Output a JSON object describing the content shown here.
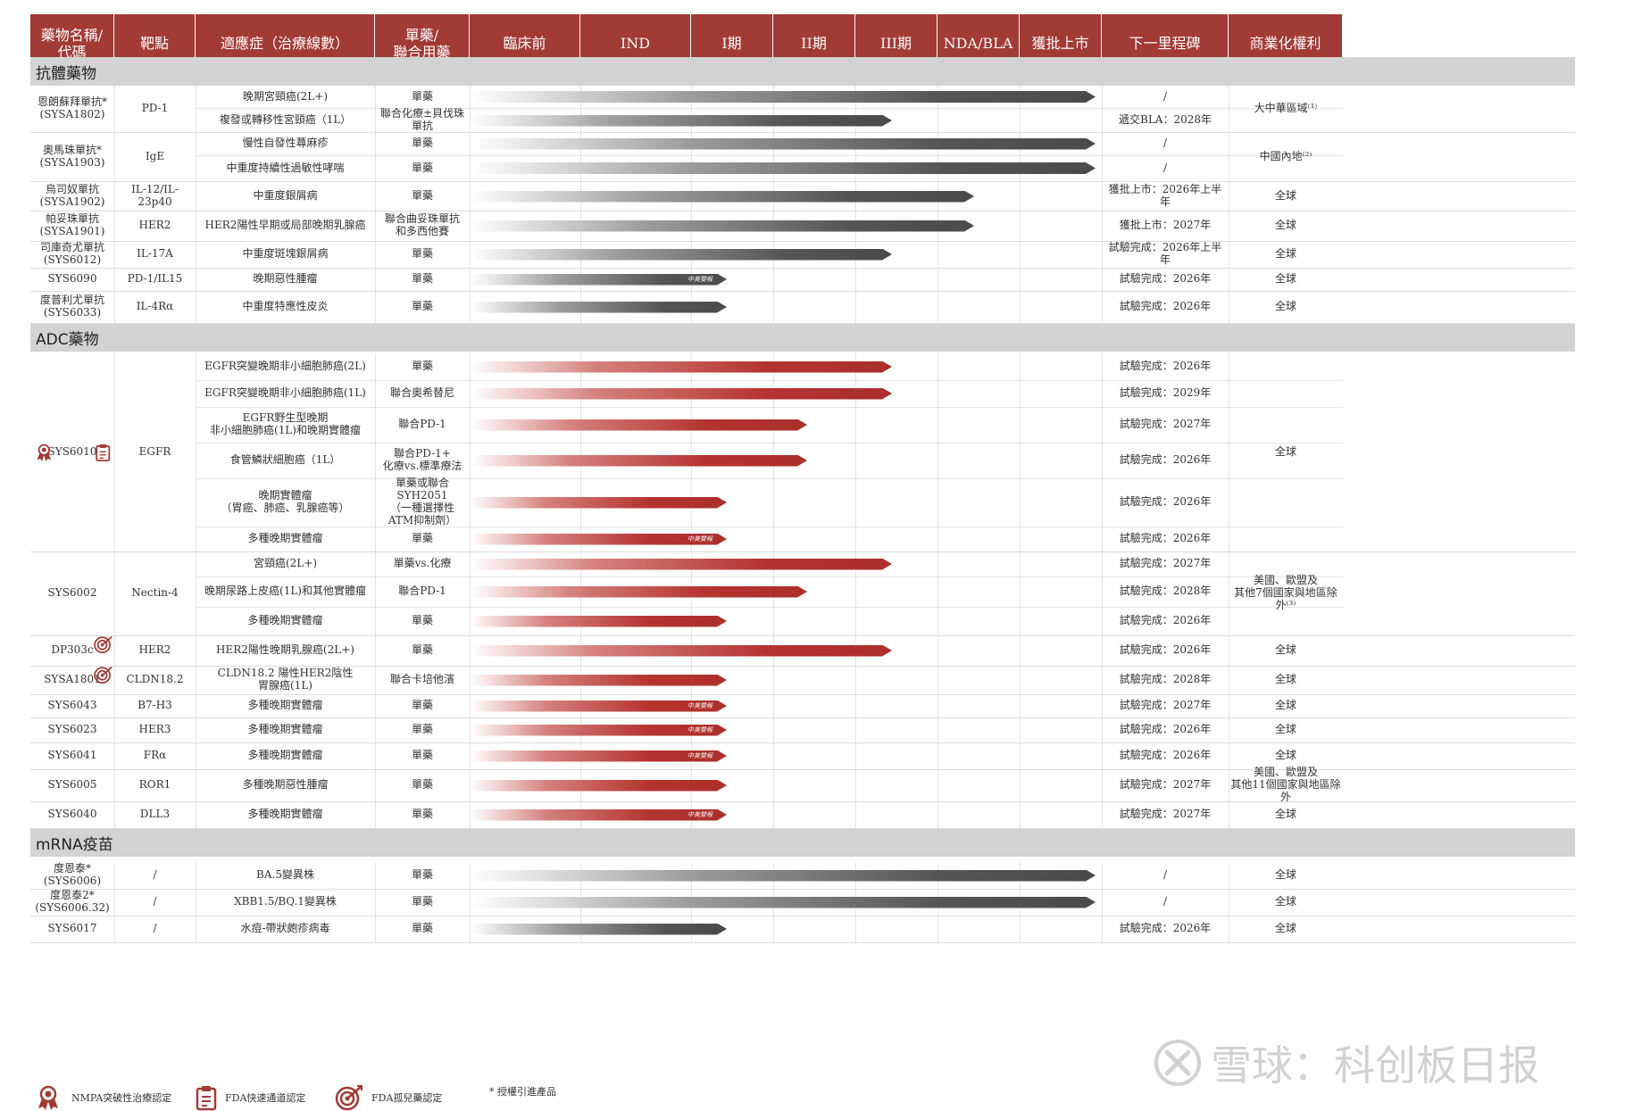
{
  "headers": [
    {
      "label": "藥物名稱/\n代碼"
    },
    {
      "label": "靶點"
    },
    {
      "label": "適應症（治療線數）"
    },
    {
      "label": "單藥/\n聯合用藥"
    },
    {
      "label": "臨床前"
    },
    {
      "label": "IND"
    },
    {
      "label": "I期"
    },
    {
      "label": "II期"
    },
    {
      "label": "III期"
    },
    {
      "label": "NDA/BLA"
    },
    {
      "label": "獲批上市"
    },
    {
      "label": "下一里程碑"
    },
    {
      "label": "商業化權利"
    }
  ],
  "sections": [
    {
      "title": "抗體藥物"
    },
    {
      "title": "ADC藥物"
    },
    {
      "title": "mRNA疫苗"
    }
  ],
  "groups": [
    {
      "drug": "恩朗蘇拜單抗*\n(SYSA1802)",
      "target": "PD-1",
      "rights": "大中華區域⁽¹⁾",
      "icons": []
    },
    {
      "drug": "奧馬珠單抗*\n(SYSA1903)",
      "target": "IgE",
      "rights": "中國內地⁽²⁾",
      "icons": []
    },
    {
      "drug": "烏司奴單抗\n(SYSA1902)",
      "target": "IL-12/IL-23p40",
      "rights": "全球",
      "icons": []
    },
    {
      "drug": "帕妥珠單抗\n(SYSA1901)",
      "target": "HER2",
      "rights": "全球",
      "icons": []
    },
    {
      "drug": "司庫奇尤單抗\n(SYS6012)",
      "target": "IL-17A",
      "rights": "全球",
      "icons": []
    },
    {
      "drug": "SYS6090",
      "target": "PD-1/IL15",
      "rights": "全球",
      "icons": []
    },
    {
      "drug": "度普利尤單抗\n(SYS6033)",
      "target": "IL-4Rα",
      "rights": "全球",
      "icons": []
    },
    {
      "drug": "SYS6010",
      "target": "EGFR",
      "rights": "全球",
      "icons": [
        "nmpa-breakthrough",
        "fda-fast-track"
      ]
    },
    {
      "drug": "SYS6002",
      "target": "Nectin-4",
      "rights": "美國、歐盟及\n其他7個國家與地區除外⁽³⁾",
      "icons": []
    },
    {
      "drug": "DP303c",
      "target": "HER2",
      "rights": "全球",
      "icons": [
        "fda-orphan"
      ]
    },
    {
      "drug": "SYSA1801",
      "target": "CLDN18.2",
      "rights": "全球",
      "icons": [
        "fda-orphan"
      ]
    },
    {
      "drug": "SYS6043",
      "target": "B7-H3",
      "rights": "全球",
      "icons": []
    },
    {
      "drug": "SYS6023",
      "target": "HER3",
      "rights": "全球",
      "icons": []
    },
    {
      "drug": "SYS6041",
      "target": "FRα",
      "rights": "全球",
      "icons": []
    },
    {
      "drug": "SYS6005",
      "target": "ROR1",
      "rights": "美國、歐盟及\n其他11個國家與地區除外",
      "icons": []
    },
    {
      "drug": "SYS6040",
      "target": "DLL3",
      "rights": "全球",
      "icons": []
    },
    {
      "drug": "度恩泰*\n(SYS6006)",
      "target": "/",
      "rights": "全球",
      "icons": []
    },
    {
      "drug": "度恩泰2*\n(SYS6006.32)",
      "target": "/",
      "rights": "全球",
      "icons": []
    },
    {
      "drug": "SYS6017",
      "target": "/",
      "rights": "全球",
      "icons": []
    }
  ],
  "rows": [
    {
      "indication": "晚期宮頸癌(2L+)",
      "combo": "單藥",
      "milestone": "/",
      "stage": "approved",
      "color": "gray",
      "tag": ""
    },
    {
      "indication": "複發或轉移性宮頸癌（1L）",
      "combo": "聯合化療±貝伐珠單抗",
      "milestone": "遞交BLA：2028年",
      "stage": "phase3",
      "color": "gray",
      "tag": ""
    },
    {
      "indication": "慢性自發性蕁麻疹",
      "combo": "單藥",
      "milestone": "/",
      "stage": "approved",
      "color": "gray",
      "tag": ""
    },
    {
      "indication": "中重度持續性過敏性哮喘",
      "combo": "單藥",
      "milestone": "/",
      "stage": "approved",
      "color": "gray",
      "tag": ""
    },
    {
      "indication": "中重度銀屑病",
      "combo": "單藥",
      "milestone": "獲批上市：2026年上半年",
      "stage": "nda",
      "color": "gray",
      "tag": ""
    },
    {
      "indication": "HER2陽性早期或局部晚期乳腺癌",
      "combo": "聯合曲妥珠單抗\n和多西他賽",
      "milestone": "獲批上市：2027年",
      "stage": "nda",
      "color": "gray",
      "tag": ""
    },
    {
      "indication": "中重度斑塊銀屑病",
      "combo": "單藥",
      "milestone": "試驗完成：2026年上半年",
      "stage": "phase3",
      "color": "gray",
      "tag": ""
    },
    {
      "indication": "晚期惡性腫瘤",
      "combo": "單藥",
      "milestone": "試驗完成：2026年",
      "stage": "phase1",
      "color": "gray",
      "tag": "中美雙報"
    },
    {
      "indication": "中重度特應性皮炎",
      "combo": "單藥",
      "milestone": "試驗完成：2026年",
      "stage": "phase1",
      "color": "gray",
      "tag": ""
    },
    {
      "indication": "EGFR突變晚期非小細胞肺癌(2L)",
      "combo": "單藥",
      "milestone": "試驗完成：2026年",
      "stage": "phase3",
      "color": "red",
      "tag": ""
    },
    {
      "indication": "EGFR突變晚期非小細胞肺癌(1L)",
      "combo": "聯合奧希替尼",
      "milestone": "試驗完成：2029年",
      "stage": "phase3",
      "color": "red",
      "tag": ""
    },
    {
      "indication": "EGFR野生型晚期\n非小細胞肺癌(1L)和晚期實體瘤",
      "combo": "聯合PD-1",
      "milestone": "試驗完成：2027年",
      "stage": "phase2",
      "color": "red",
      "tag": ""
    },
    {
      "indication": "食管鱗狀細胞癌（1L）",
      "combo": "聯合PD-1+\n化療vs.標準療法",
      "milestone": "試驗完成：2026年",
      "stage": "phase2",
      "color": "red",
      "tag": ""
    },
    {
      "indication": "晚期實體瘤\n（胃癌、肺癌、乳腺癌等）",
      "combo": "單藥或聯合\nSYH2051\n（一種選擇性\nATM抑制劑）",
      "milestone": "試驗完成：2026年",
      "stage": "phase1",
      "color": "red",
      "tag": ""
    },
    {
      "indication": "多種晚期實體瘤",
      "combo": "單藥",
      "milestone": "試驗完成：2026年",
      "stage": "phase1",
      "color": "red",
      "tag": "中美雙報"
    },
    {
      "indication": "宮頸癌(2L+)",
      "combo": "單藥vs.化療",
      "milestone": "試驗完成：2027年",
      "stage": "phase3",
      "color": "red",
      "tag": ""
    },
    {
      "indication": "晚期尿路上皮癌(1L)和其他實體瘤",
      "combo": "聯合PD-1",
      "milestone": "試驗完成：2028年",
      "stage": "phase2",
      "color": "red",
      "tag": ""
    },
    {
      "indication": "多種晚期實體瘤",
      "combo": "單藥",
      "milestone": "試驗完成：2026年",
      "stage": "phase1",
      "color": "red",
      "tag": ""
    },
    {
      "indication": "HER2陽性晚期乳腺癌(2L+)",
      "combo": "單藥",
      "milestone": "試驗完成：2026年",
      "stage": "phase3",
      "color": "red",
      "tag": ""
    },
    {
      "indication": "CLDN18.2 陽性HER2陰性\n胃腺癌(1L)",
      "combo": "聯合卡培他濱",
      "milestone": "試驗完成：2028年",
      "stage": "phase1",
      "color": "red",
      "tag": ""
    },
    {
      "indication": "多種晚期實體瘤",
      "combo": "單藥",
      "milestone": "試驗完成：2027年",
      "stage": "phase1",
      "color": "red",
      "tag": "中美雙報"
    },
    {
      "indication": "多種晚期實體瘤",
      "combo": "單藥",
      "milestone": "試驗完成：2026年",
      "stage": "phase1",
      "color": "red",
      "tag": "中美雙報"
    },
    {
      "indication": "多種晚期實體瘤",
      "combo": "單藥",
      "milestone": "試驗完成：2026年",
      "stage": "phase1",
      "color": "red",
      "tag": "中美雙報"
    },
    {
      "indication": "多種晚期惡性腫瘤",
      "combo": "單藥",
      "milestone": "試驗完成：2027年",
      "stage": "phase1",
      "color": "red",
      "tag": ""
    },
    {
      "indication": "多種晚期實體瘤",
      "combo": "單藥",
      "milestone": "試驗完成：2027年",
      "stage": "phase1",
      "color": "red",
      "tag": "中美雙報"
    },
    {
      "indication": "BA.5變異株",
      "combo": "單藥",
      "milestone": "/",
      "stage": "approved",
      "color": "gray",
      "tag": ""
    },
    {
      "indication": "XBB1.5/BQ.1變異株",
      "combo": "單藥",
      "milestone": "/",
      "stage": "approved",
      "color": "gray",
      "tag": ""
    },
    {
      "indication": "水痘-帶狀皰疹病毒",
      "combo": "單藥",
      "milestone": "試驗完成：2026年",
      "stage": "phase1",
      "color": "gray",
      "tag": ""
    }
  ],
  "legend": [
    {
      "icon": "nmpa-breakthrough-icon",
      "label": "NMPA突破性治療認定"
    },
    {
      "icon": "fda-fast-track-icon",
      "label": "FDA快速通道認定"
    },
    {
      "icon": "fda-orphan-icon",
      "label": "FDA孤兒藥認定"
    },
    {
      "icon": "",
      "label": "* 授權引進產品"
    }
  ],
  "watermark": "雪球：科创板日报",
  "colors": {
    "header": "#a23a35",
    "section": "#d3d3d3",
    "bar_gray": "#4a4a4a",
    "bar_red": "#ab2f2c"
  }
}
